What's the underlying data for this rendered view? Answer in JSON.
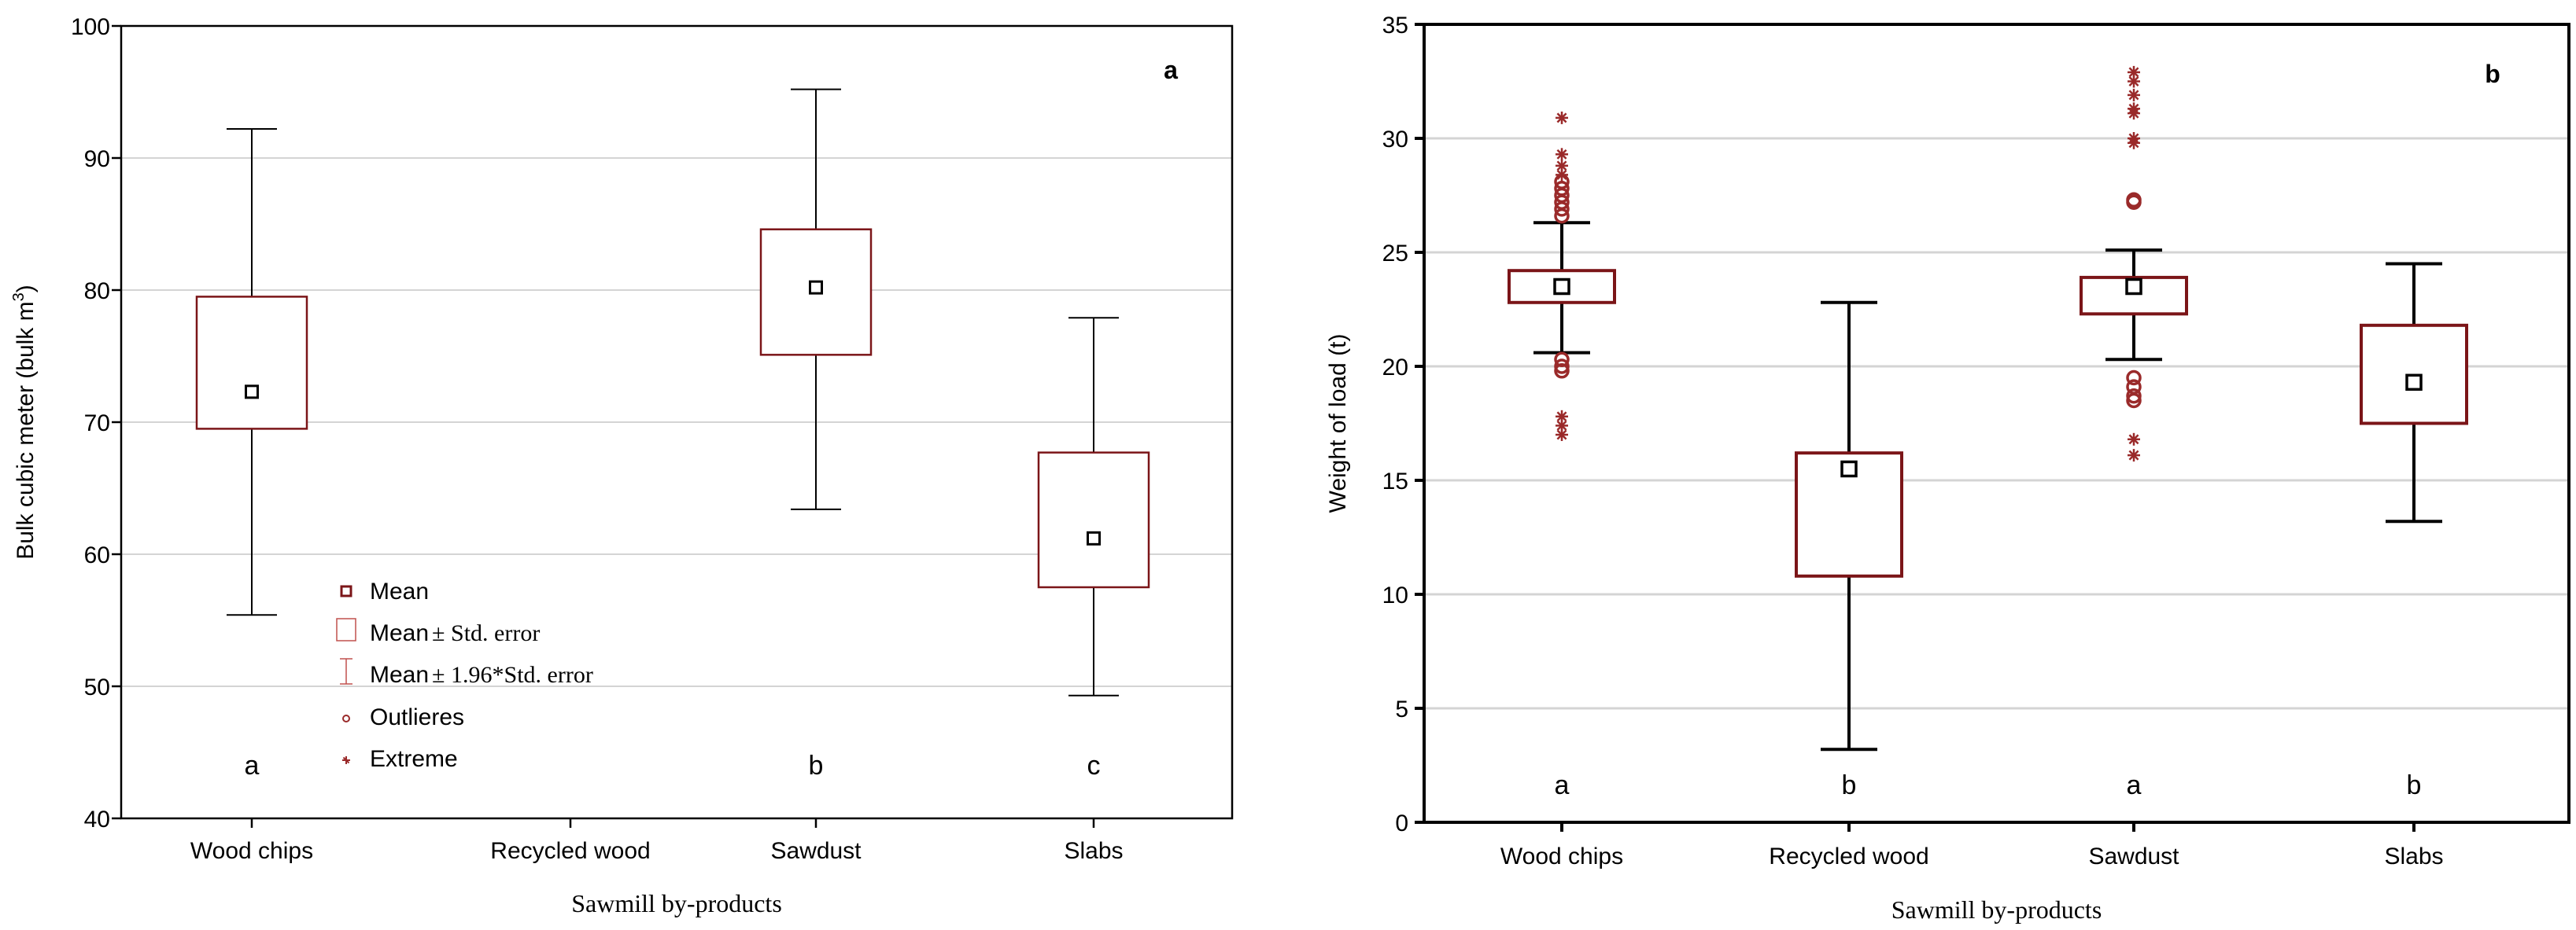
{
  "chart_data": [
    {
      "type": "boxplot",
      "panel_label": "a",
      "xlabel": "Sawmill by-products",
      "ylabel_main": "Bulk cubic meter (bulk m",
      "ylabel_sup": "3",
      "ylabel_close": ")",
      "ylim": [
        40,
        100
      ],
      "yticks": [
        40,
        50,
        60,
        70,
        80,
        90,
        100
      ],
      "ytick_labels": [
        "40",
        "50",
        "60",
        "70",
        "80",
        "90",
        "100"
      ],
      "grid": true,
      "categories": [
        "Wood chips",
        "Recycled wood",
        "Sawdust",
        "Slabs"
      ],
      "boxes": [
        {
          "category": "Wood chips",
          "mean": 72.3,
          "se_low": 69.5,
          "se_high": 79.5,
          "ci_low": 55.4,
          "ci_high": 92.2,
          "group": "a",
          "outliers": [],
          "extremes": []
        },
        {
          "category": "Sawdust",
          "mean": 80.2,
          "se_low": 75.1,
          "se_high": 84.6,
          "ci_low": 63.4,
          "ci_high": 95.2,
          "group": "b",
          "outliers": [],
          "extremes": []
        },
        {
          "category": "Slabs",
          "mean": 61.2,
          "se_low": 57.5,
          "se_high": 67.7,
          "ci_low": 49.3,
          "ci_high": 77.9,
          "group": "c",
          "outliers": [],
          "extremes": []
        }
      ],
      "legend": {
        "placement": "bottom-center",
        "entries": [
          {
            "key": "mean",
            "main": "Mean",
            "tail": ""
          },
          {
            "key": "box",
            "main": "Mean",
            "tail": "± Std. error"
          },
          {
            "key": "whisker",
            "main": "Mean",
            "tail": "± 1.96*Std. error"
          },
          {
            "key": "outlier",
            "main": "Outlieres",
            "tail": ""
          },
          {
            "key": "extreme",
            "main": "Extreme",
            "tail": ""
          }
        ]
      }
    },
    {
      "type": "boxplot",
      "panel_label": "b",
      "xlabel": "Sawmill by-products",
      "ylabel_main": "Weight of load (t)",
      "ylabel_sup": "",
      "ylabel_close": "",
      "ylim": [
        0,
        35
      ],
      "yticks": [
        0,
        5,
        10,
        15,
        20,
        25,
        30,
        35
      ],
      "ytick_labels": [
        "0",
        "5",
        "10",
        "15",
        "20",
        "25",
        "30",
        "35"
      ],
      "grid": true,
      "categories": [
        "Wood chips",
        "Recycled wood",
        "Sawdust",
        "Slabs"
      ],
      "boxes": [
        {
          "category": "Wood chips",
          "mean": 23.5,
          "se_low": 22.8,
          "se_high": 24.2,
          "ci_low": 20.6,
          "ci_high": 26.3,
          "group": "a",
          "outliers": [
            26.6,
            26.9,
            27.2,
            27.5,
            27.8,
            28.1,
            20.3,
            20.0,
            19.8
          ],
          "extremes": [
            30.9,
            29.3,
            28.8,
            28.4,
            17.8,
            17.4,
            17.0
          ]
        },
        {
          "category": "Recycled wood",
          "mean": 15.5,
          "se_low": 10.8,
          "se_high": 16.2,
          "ci_low": 3.2,
          "ci_high": 22.8,
          "group": "b",
          "outliers": [],
          "extremes": []
        },
        {
          "category": "Sawdust",
          "mean": 23.5,
          "se_low": 22.3,
          "se_high": 23.9,
          "ci_low": 20.3,
          "ci_high": 25.1,
          "group": "a",
          "outliers": [
            27.2,
            27.3,
            19.5,
            19.1,
            18.7,
            18.5
          ],
          "extremes": [
            32.9,
            32.5,
            31.9,
            31.3,
            31.1,
            30.0,
            29.8,
            16.8,
            16.1
          ]
        },
        {
          "category": "Slabs",
          "mean": 19.3,
          "se_low": 17.5,
          "se_high": 21.8,
          "ci_low": 13.2,
          "ci_high": 24.5,
          "group": "b",
          "outliers": [],
          "extremes": []
        }
      ]
    }
  ]
}
